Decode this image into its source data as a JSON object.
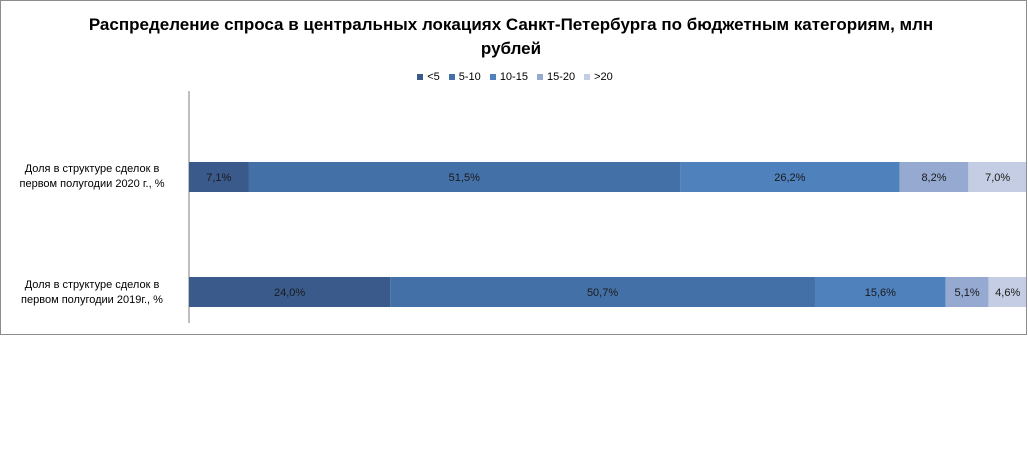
{
  "chart_data": {
    "type": "bar",
    "orientation": "horizontal",
    "stacked": "percent",
    "title": "Распределение спроса в центральных локациях Санкт-Петербурга по бюджетным категориям, млн рублей",
    "legend_position": "top",
    "categories": [
      "Доля в структуре сделок в первом полугодии 2020 г., %",
      "Доля в структуре сделок в первом полугодии 2019г., %"
    ],
    "series": [
      {
        "name": "<5",
        "color": "#3a5a8c",
        "values": [
          7.1,
          24.0
        ],
        "labels": [
          "7,1%",
          "24,0%"
        ]
      },
      {
        "name": "5-10",
        "color": "#4470a8",
        "values": [
          51.5,
          50.7
        ],
        "labels": [
          "51,5%",
          "50,7%"
        ]
      },
      {
        "name": "10-15",
        "color": "#4f81bd",
        "values": [
          26.2,
          15.6
        ],
        "labels": [
          "26,2%",
          "15,6%"
        ]
      },
      {
        "name": "15-20",
        "color": "#95a9d1",
        "values": [
          8.2,
          5.1
        ],
        "labels": [
          "8,2%",
          "5,1%"
        ]
      },
      {
        "name": ">20",
        "color": "#c4cde3",
        "values": [
          7.0,
          4.6
        ],
        "labels": [
          "7,0%",
          "4,6%"
        ]
      }
    ],
    "grid": false
  }
}
